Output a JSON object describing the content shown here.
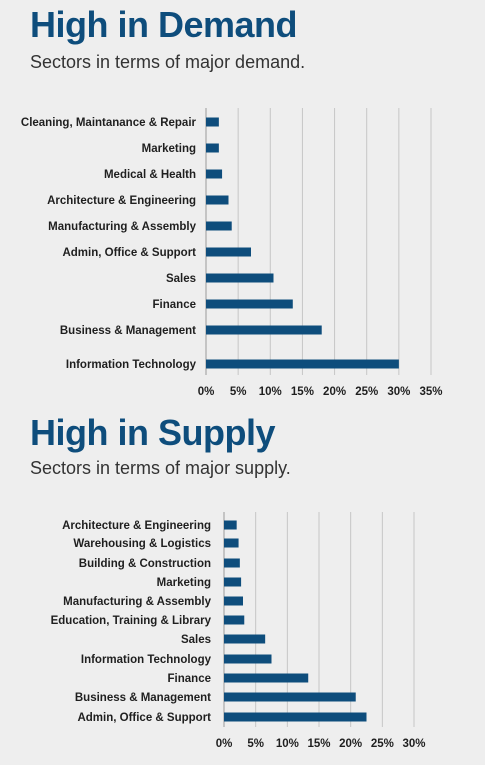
{
  "colors": {
    "title": "#0e4d7c",
    "bar": "#0e4d7c",
    "background": "#eeeeee",
    "grid": "#c6c6c6"
  },
  "chart_data": [
    {
      "type": "bar",
      "orientation": "horizontal",
      "title": "High in Demand",
      "subtitle": "Sectors in terms of major demand.",
      "categories": [
        "Cleaning, Maintanance & Repair",
        "Marketing",
        "Medical & Health",
        "Architecture & Engineering",
        "Manufacturing & Assembly",
        "Admin, Office & Support",
        "Sales",
        "Finance",
        "Business & Management",
        "Information Technology"
      ],
      "values": [
        2,
        2,
        2.5,
        3.5,
        4,
        7,
        10.5,
        13.5,
        18,
        30
      ],
      "xlim": [
        0,
        35
      ],
      "xticks": [
        "0%",
        "5%",
        "10%",
        "15%",
        "20%",
        "25%",
        "30%",
        "35%"
      ],
      "xlabel": "",
      "ylabel": "",
      "grid": true,
      "legend": false
    },
    {
      "type": "bar",
      "orientation": "horizontal",
      "title": "High in Supply",
      "subtitle": "Sectors in terms of major supply.",
      "categories": [
        "Architecture & Engineering",
        "Warehousing & Logistics",
        "Building & Construction",
        "Marketing",
        "Manufacturing & Assembly",
        "Education, Training & Library",
        "Sales",
        "Information Technology",
        "Finance",
        "Business & Management",
        "Admin, Office & Support"
      ],
      "values": [
        2,
        2.3,
        2.5,
        2.7,
        3,
        3.2,
        6.5,
        7.5,
        13.3,
        20.8,
        22.5
      ],
      "xlim": [
        0,
        30
      ],
      "xticks": [
        "0%",
        "5%",
        "10%",
        "15%",
        "20%",
        "25%",
        "30%"
      ],
      "xlabel": "",
      "ylabel": "",
      "grid": true,
      "legend": false
    }
  ]
}
